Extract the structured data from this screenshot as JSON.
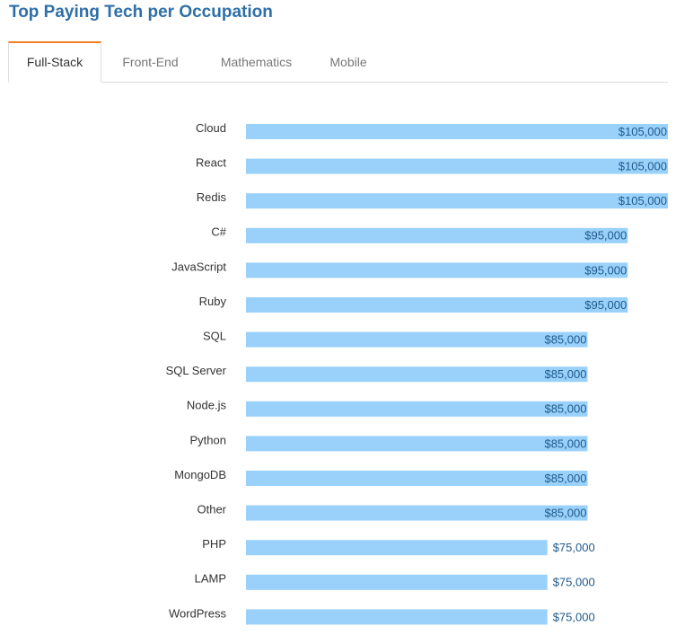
{
  "page": {
    "title": "Top Paying Tech per Occupation"
  },
  "tabs": [
    {
      "label": "Full-Stack",
      "active": true
    },
    {
      "label": "Front-End",
      "active": false
    },
    {
      "label": "Mathematics",
      "active": false
    },
    {
      "label": "Mobile",
      "active": false
    }
  ],
  "colors": {
    "bar": "#99d1fb",
    "title": "#2e6fa7",
    "tab_accent": "#f48024",
    "value_text": "#1f5a8a"
  },
  "chart_data": {
    "type": "bar",
    "orientation": "horizontal",
    "categories": [
      "Cloud",
      "React",
      "Redis",
      "C#",
      "JavaScript",
      "Ruby",
      "SQL",
      "SQL Server",
      "Node.js",
      "Python",
      "MongoDB",
      "Other",
      "PHP",
      "LAMP",
      "WordPress"
    ],
    "values": [
      105000,
      105000,
      105000,
      95000,
      95000,
      95000,
      85000,
      85000,
      85000,
      85000,
      85000,
      85000,
      75000,
      75000,
      75000
    ],
    "value_labels": [
      "$105,000",
      "$105,000",
      "$105,000",
      "$95,000",
      "$95,000",
      "$95,000",
      "$85,000",
      "$85,000",
      "$85,000",
      "$85,000",
      "$85,000",
      "$85,000",
      "$75,000",
      "$75,000",
      "$75,000"
    ],
    "title": "",
    "xlabel": "",
    "ylabel": "",
    "xlim": [
      0,
      105000
    ],
    "grid": false,
    "legend": "none"
  }
}
